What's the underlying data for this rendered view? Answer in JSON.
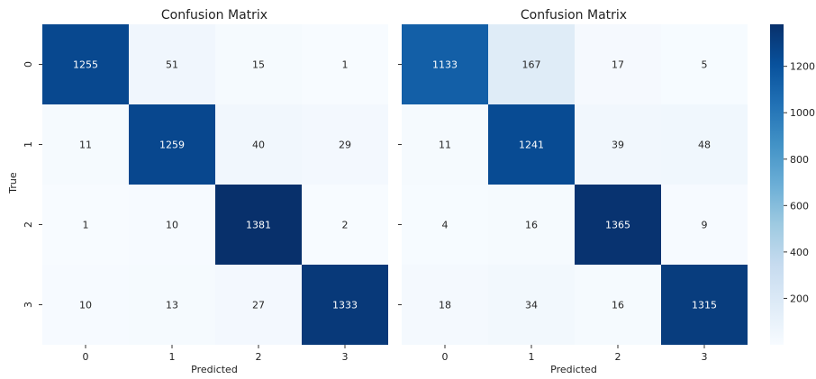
{
  "colors": {
    "low": "#f7fbff",
    "high": "#08306b",
    "dark_text": "#262626",
    "light_text": "#ffffff"
  },
  "colorbar": {
    "ticks": [
      "200",
      "400",
      "600",
      "800",
      "1000",
      "1200"
    ]
  },
  "chart_data": [
    {
      "type": "heatmap",
      "title": "Confusion Matrix",
      "xlabel": "Predicted",
      "ylabel": "True",
      "x_ticks": [
        "0",
        "1",
        "2",
        "3"
      ],
      "y_ticks": [
        "0",
        "1",
        "2",
        "3"
      ],
      "values": [
        [
          1255,
          51,
          15,
          1
        ],
        [
          11,
          1259,
          40,
          29
        ],
        [
          1,
          10,
          1381,
          2
        ],
        [
          10,
          13,
          27,
          1333
        ]
      ],
      "colorscale": "Blues",
      "vmin": 0,
      "vmax": 1381
    },
    {
      "type": "heatmap",
      "title": "Confusion Matrix",
      "xlabel": "Predicted",
      "ylabel": "",
      "x_ticks": [
        "0",
        "1",
        "2",
        "3"
      ],
      "y_ticks": [],
      "values": [
        [
          1133,
          167,
          17,
          5
        ],
        [
          11,
          1241,
          39,
          48
        ],
        [
          4,
          16,
          1365,
          9
        ],
        [
          18,
          34,
          16,
          1315
        ]
      ],
      "colorscale": "Blues",
      "vmin": 0,
      "vmax": 1381
    }
  ]
}
